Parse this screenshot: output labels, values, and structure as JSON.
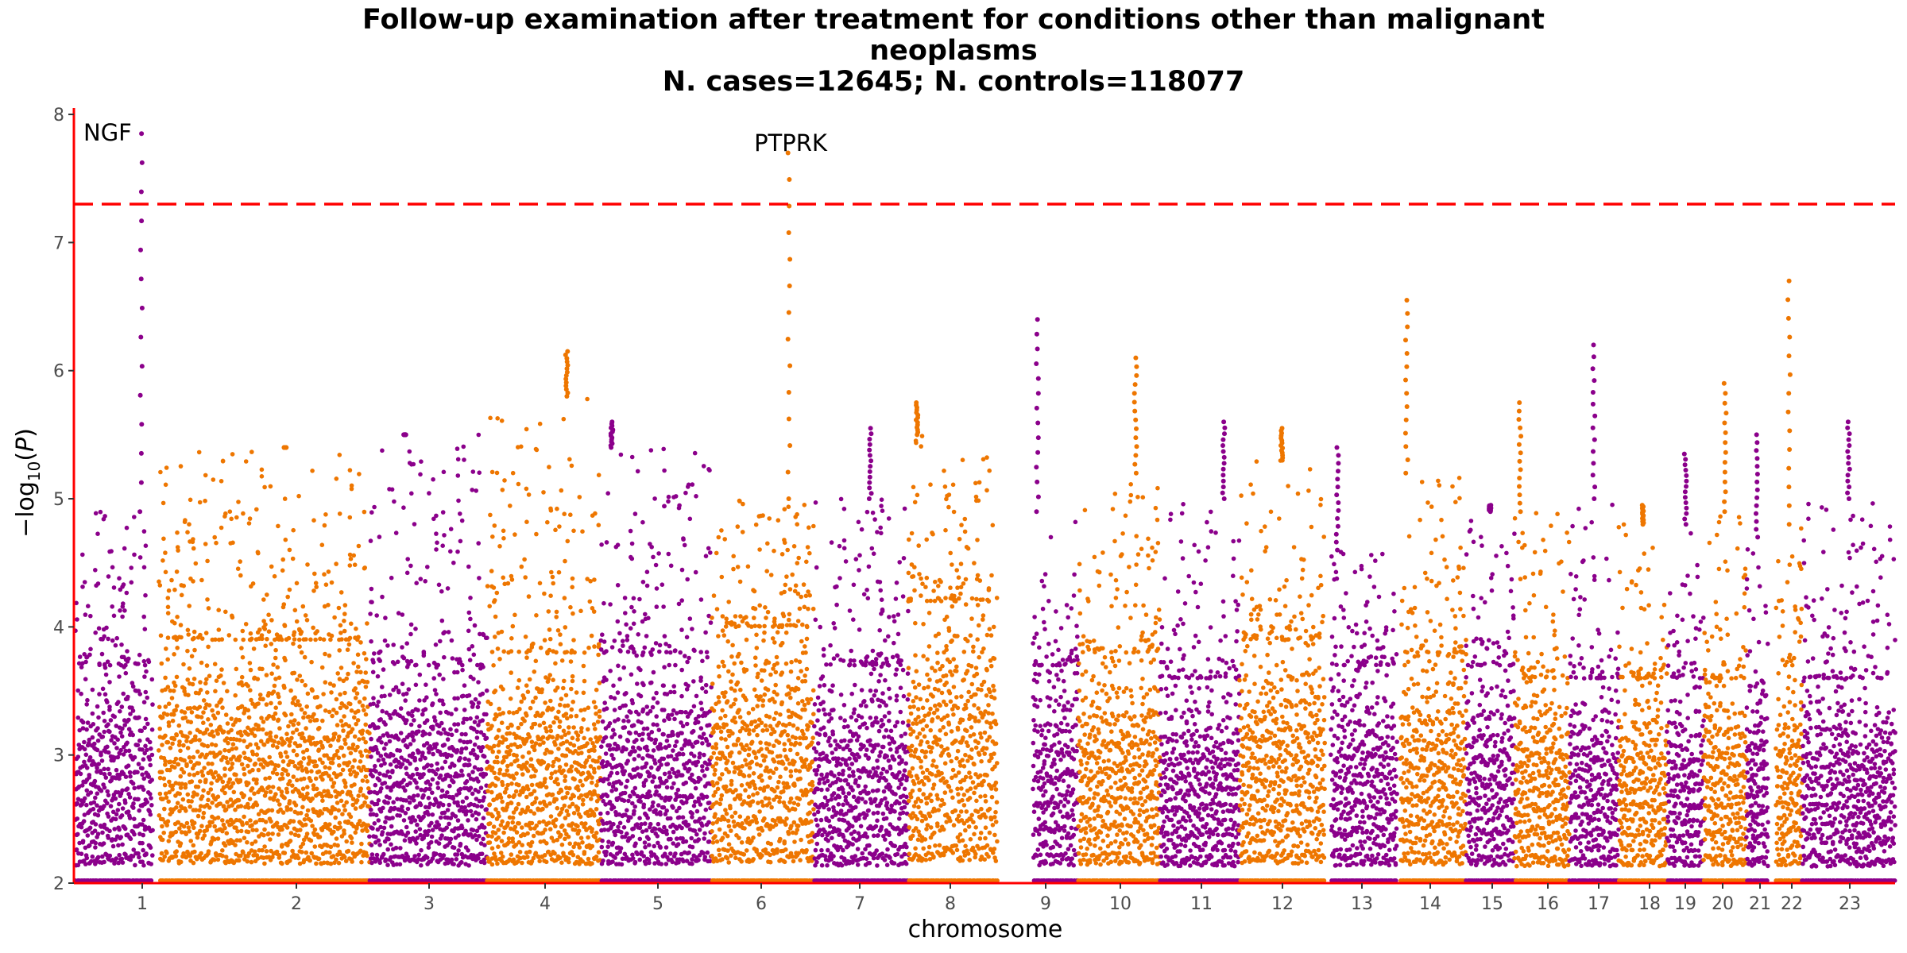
{
  "chart_data": {
    "type": "scatter",
    "subtype": "manhattan",
    "title_lines": [
      "Follow-up examination after treatment for conditions other than malignant",
      "neoplasms",
      "N. cases=12645; N. controls=118077"
    ],
    "xlabel": "chromosome",
    "ylabel": "−log10(P)",
    "ylim": [
      2,
      8.05
    ],
    "y_ticks": [
      2,
      3,
      4,
      5,
      6,
      7,
      8
    ],
    "significance_line": 7.3,
    "colors": {
      "odd_group": "#8B008B",
      "even_group": "#EE7600",
      "significance_line": "#ff0000",
      "axis": "#ff0000"
    },
    "chromosomes": [
      {
        "label": "1",
        "bulk_max": 3.7,
        "spread_max": 4.9,
        "top": 7.85,
        "peak_pos": 0.85
      },
      {
        "label": "2",
        "bulk_max": 3.9,
        "spread_max": 5.4,
        "top": 5.4,
        "peak_pos": 0.6
      },
      {
        "label": "3",
        "bulk_max": 3.7,
        "spread_max": 5.5,
        "top": 5.5,
        "peak_pos": 0.3
      },
      {
        "label": "4",
        "bulk_max": 3.8,
        "spread_max": 5.8,
        "top": 6.15,
        "peak_pos": 0.7
      },
      {
        "label": "5",
        "bulk_max": 3.8,
        "spread_max": 5.4,
        "top": 5.6,
        "peak_pos": 0.1
      },
      {
        "label": "6",
        "bulk_max": 4.0,
        "spread_max": 5.0,
        "top": 7.7,
        "peak_pos": 0.76
      },
      {
        "label": "7",
        "bulk_max": 3.7,
        "spread_max": 5.0,
        "top": 5.55,
        "peak_pos": 0.6
      },
      {
        "label": "8",
        "bulk_max": 4.2,
        "spread_max": 5.5,
        "top": 5.75,
        "peak_pos": 0.1
      },
      {
        "label": "9",
        "bulk_max": 3.7,
        "spread_max": 4.9,
        "top": 6.4,
        "peak_pos": 0.1
      },
      {
        "label": "10",
        "bulk_max": 3.8,
        "spread_max": 5.2,
        "top": 6.1,
        "peak_pos": 0.7
      },
      {
        "label": "11",
        "bulk_max": 3.6,
        "spread_max": 5.0,
        "top": 5.6,
        "peak_pos": 0.8
      },
      {
        "label": "12",
        "bulk_max": 3.9,
        "spread_max": 5.3,
        "top": 5.55,
        "peak_pos": 0.5
      },
      {
        "label": "13",
        "bulk_max": 3.7,
        "spread_max": 4.6,
        "top": 5.4,
        "peak_pos": 0.1
      },
      {
        "label": "14",
        "bulk_max": 3.8,
        "spread_max": 5.2,
        "top": 6.55,
        "peak_pos": 0.1
      },
      {
        "label": "15",
        "bulk_max": 3.7,
        "spread_max": 4.9,
        "top": 4.95,
        "peak_pos": 0.5
      },
      {
        "label": "16",
        "bulk_max": 3.6,
        "spread_max": 4.9,
        "top": 5.75,
        "peak_pos": 0.1
      },
      {
        "label": "17",
        "bulk_max": 3.6,
        "spread_max": 5.0,
        "top": 6.2,
        "peak_pos": 0.5
      },
      {
        "label": "18",
        "bulk_max": 3.6,
        "spread_max": 4.8,
        "top": 4.95,
        "peak_pos": 0.5
      },
      {
        "label": "19",
        "bulk_max": 3.6,
        "spread_max": 4.8,
        "top": 5.35,
        "peak_pos": 0.5
      },
      {
        "label": "20",
        "bulk_max": 3.6,
        "spread_max": 4.9,
        "top": 5.9,
        "peak_pos": 0.5
      },
      {
        "label": "21",
        "bulk_max": 3.5,
        "spread_max": 4.7,
        "top": 5.5,
        "peak_pos": 0.5
      },
      {
        "label": "22",
        "bulk_max": 3.7,
        "spread_max": 4.8,
        "top": 6.7,
        "peak_pos": 0.5
      },
      {
        "label": "23",
        "bulk_max": 3.6,
        "spread_max": 5.0,
        "top": 5.6,
        "peak_pos": 0.5
      }
    ],
    "labeled_hits": [
      {
        "gene": "NGF",
        "chromosome": "1",
        "value": 7.85
      },
      {
        "gene": "PTPRK",
        "chromosome": "6",
        "value": 7.7
      }
    ]
  }
}
